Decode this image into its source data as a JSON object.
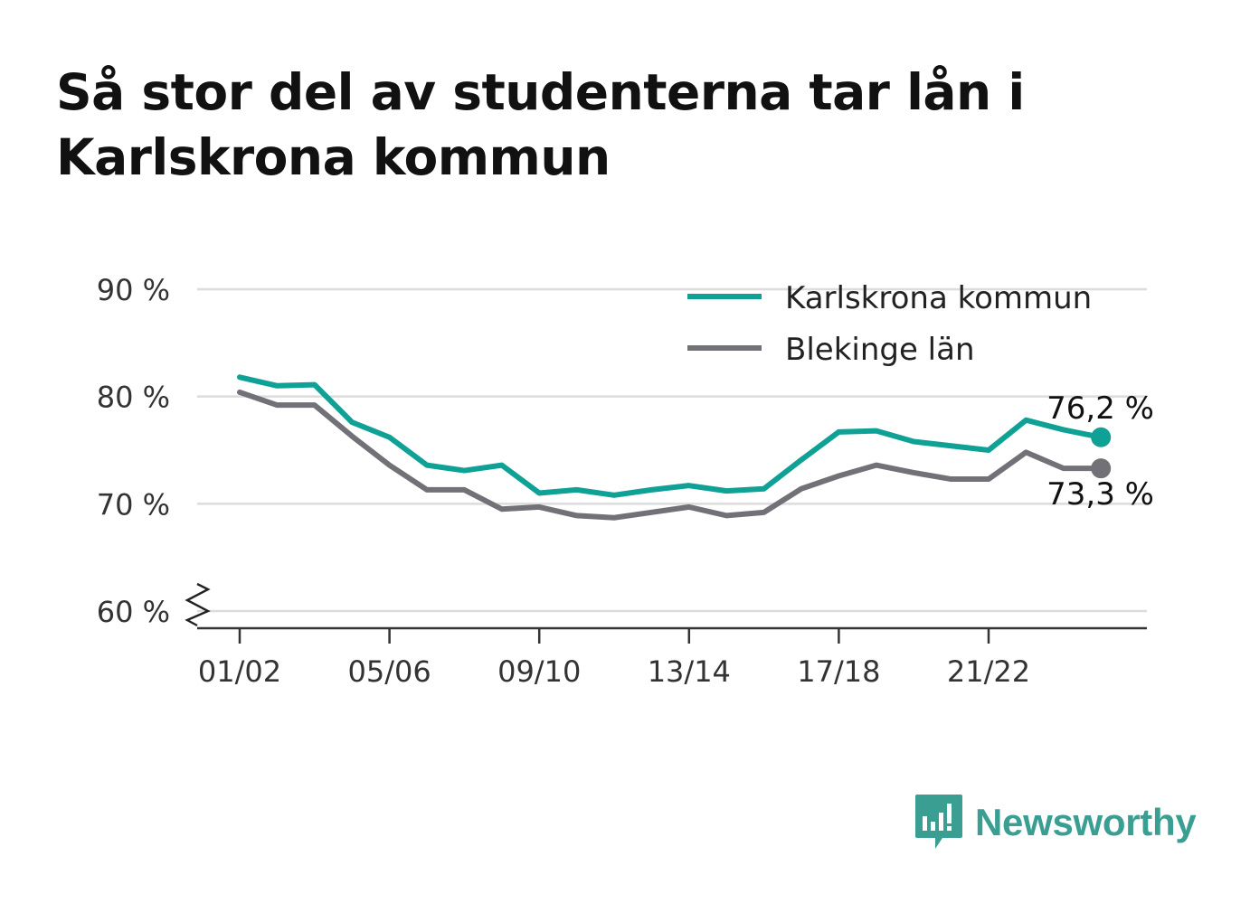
{
  "title_line1": "Så stor del av studenterna tar lån i",
  "title_line2": "Karlskrona kommun",
  "brand": "Newsworthy",
  "colors": {
    "accent": "#0fa195",
    "secondary": "#727177",
    "grid": "#dcdcdc",
    "brand": "#3a9e93"
  },
  "chart_data": {
    "type": "line",
    "x": [
      "01/02",
      "02/03",
      "03/04",
      "04/05",
      "05/06",
      "06/07",
      "07/08",
      "08/09",
      "09/10",
      "10/11",
      "11/12",
      "12/13",
      "13/14",
      "14/15",
      "15/16",
      "16/17",
      "17/18",
      "18/19",
      "19/20",
      "20/21",
      "21/22",
      "22/23",
      "23/24",
      "24/25"
    ],
    "tick_labels": [
      "01/02",
      "05/06",
      "09/10",
      "13/14",
      "17/18",
      "21/22"
    ],
    "y_ticks": [
      "60 %",
      "70 %",
      "80 %",
      "90 %"
    ],
    "ylim": [
      60,
      90
    ],
    "axis_break": true,
    "grid": true,
    "legend": "top-right",
    "series": [
      {
        "name": "Karlskrona kommun",
        "color": "#0fa195",
        "values": [
          81.8,
          81.0,
          81.1,
          77.6,
          76.2,
          73.6,
          73.1,
          73.6,
          71.0,
          71.3,
          70.8,
          71.3,
          71.7,
          71.2,
          71.4,
          74.1,
          76.7,
          76.8,
          75.8,
          75.4,
          75.0,
          77.8,
          76.9,
          76.2
        ],
        "end_label": "76,2 %"
      },
      {
        "name": "Blekinge län",
        "color": "#727177",
        "values": [
          80.4,
          79.2,
          79.2,
          76.3,
          73.6,
          71.3,
          71.3,
          69.5,
          69.7,
          68.9,
          68.7,
          69.2,
          69.7,
          68.9,
          69.2,
          71.4,
          72.6,
          73.6,
          72.9,
          72.3,
          72.3,
          74.8,
          73.3,
          73.3
        ],
        "end_label": "73,3 %"
      }
    ]
  }
}
